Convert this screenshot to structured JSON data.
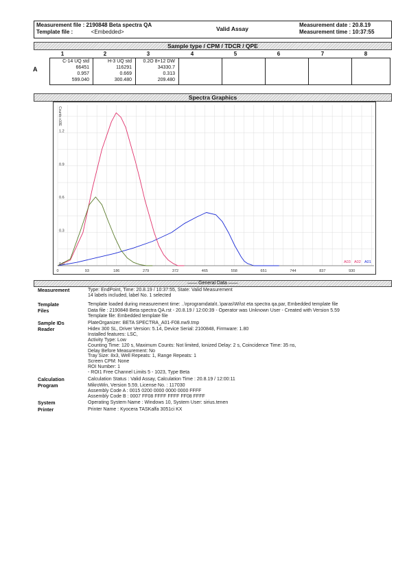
{
  "header": {
    "measurement_file_label": "Measurement file :",
    "measurement_file_value": "2190848 Beta spectra QA",
    "template_file_label": "Template file :",
    "template_file_value": "<Embedded>",
    "status": "Valid Assay",
    "measurement_date_label": "Measurement date :",
    "measurement_date_value": "20.8.19",
    "measurement_time_label": "Measurement time :",
    "measurement_time_value": "10:37:55"
  },
  "sample_section": {
    "title": "Sample type / CPM / TDCR / QPE",
    "columns": [
      "1",
      "2",
      "3",
      "4",
      "5",
      "6",
      "7",
      "8"
    ],
    "row_label": "A",
    "cells": [
      {
        "type": "C-14 UQ std",
        "cpm": "66451",
        "tdcr": "0.957",
        "qpe": "599.040"
      },
      {
        "type": "H-3 UQ std",
        "cpm": "116291",
        "tdcr": "0.669",
        "qpe": "300.480"
      },
      {
        "type": "0.2O 8+12 DW",
        "cpm": "34330.7",
        "tdcr": "0.313",
        "qpe": "209.480"
      }
    ]
  },
  "spectra": {
    "title": "Spectra Graphics",
    "ylabel": "Counts x10E",
    "legend": [
      "A03",
      "A02",
      "A01"
    ]
  },
  "chart_data": {
    "type": "line",
    "title": "Spectra Graphics",
    "ylabel": "Counts x10E",
    "xlabel": "",
    "x_ticks": [
      "0",
      "93",
      "186",
      "279",
      "372",
      "465",
      "558",
      "651",
      "744",
      "837",
      "930"
    ],
    "y_ticks": [
      "0.0",
      "0.3",
      "0.6",
      "0.9",
      "1.2"
    ],
    "xlim": [
      0,
      1000
    ],
    "ylim": [
      0,
      1.45
    ],
    "grid": true,
    "legend_position": "bottom-right",
    "series": [
      {
        "name": "A01",
        "color": "#1a2bd6",
        "x": [
          0,
          60,
          120,
          180,
          240,
          300,
          360,
          400,
          440,
          470,
          500,
          520,
          540,
          560,
          580,
          590,
          600,
          620,
          660,
          700
        ],
        "y": [
          0.0,
          0.03,
          0.07,
          0.11,
          0.16,
          0.22,
          0.3,
          0.38,
          0.44,
          0.48,
          0.46,
          0.4,
          0.3,
          0.18,
          0.08,
          0.04,
          0.02,
          0.0,
          0.0,
          0.0
        ]
      },
      {
        "name": "A02",
        "color": "#e0306a",
        "x": [
          0,
          40,
          80,
          110,
          140,
          170,
          185,
          200,
          215,
          230,
          245,
          260,
          275,
          290,
          305,
          320,
          335,
          350,
          365,
          380,
          400
        ],
        "y": [
          0.0,
          0.05,
          0.3,
          0.7,
          1.05,
          1.3,
          1.38,
          1.34,
          1.25,
          1.1,
          0.95,
          0.78,
          0.6,
          0.45,
          0.3,
          0.18,
          0.1,
          0.05,
          0.02,
          0.0,
          0.0
        ]
      },
      {
        "name": "A03",
        "color": "#5a7a2a",
        "x": [
          0,
          40,
          70,
          100,
          120,
          140,
          160,
          180,
          200,
          220,
          240,
          260,
          280,
          300
        ],
        "y": [
          0.0,
          0.06,
          0.3,
          0.55,
          0.62,
          0.55,
          0.4,
          0.26,
          0.14,
          0.07,
          0.03,
          0.01,
          0.0,
          0.0
        ]
      }
    ]
  },
  "general": {
    "title": "General Data",
    "rows": [
      {
        "label": "Measurement",
        "lines": [
          "Type: EndPoint, Time: 20.8.19 / 10:37:55, State: Valid Measurement",
          "14 labels included, label No. 1 selected"
        ]
      },
      {
        "label": "Template",
        "lines": [
          "Template loaded during measurement time: ..\\rprogramdata\\t..\\paras\\Wi\\st eta spectra qa.par, Embedded template file"
        ]
      },
      {
        "label": "Files",
        "lines": [
          "Data file : 2190848 Beta spectra QA.rst - 20.8.19 / 12:00:39 - Operator was Unknown User - Created with Version 5.59",
          "Template file: Embedded template file"
        ]
      },
      {
        "label": "Sample IDs",
        "lines": [
          "PlateOrganizer: BETA SPECTRA_A01-F08.nw9.tmp"
        ]
      },
      {
        "label": "Reader",
        "lines": [
          "Hidex 300 SL, Driver Version: 5.14, Device Serial: 2100848, Firmware: 1.80",
          "Installed features: LSC,",
          "Activity Type: Low",
          "Counting Time: 120 s, Maximum Counts: Not limited, Ionized Delay: 2 s, Coincidence Time: 35 ns,",
          "Delay Before Measurement: No",
          "Tray Size: 8x3, Well Repeats: 1, Range Repeats: 1",
          "Screen CPM: None",
          "ROI Number: 1",
          "- ROI1 Free Channel Limits 5 - 1023, Type Beta"
        ]
      },
      {
        "label": "Calculation",
        "lines": [
          "Calculation Status : Valid Assay, Calculation Time : 20.8.19 / 12:00:11"
        ]
      },
      {
        "label": "Program",
        "lines": [
          "MikroWin, Version 5.59, License No. : 117030",
          "Assembly Code A : 0015 0200 0000 0000 0000 FFFF",
          "Assembly Code B : 0007 FF08 FFFF FFFF FF08 FFFF"
        ]
      },
      {
        "label": "System",
        "lines": [
          "Operating System Name : Windows 10, System User: sirius.tenen"
        ]
      },
      {
        "label": "Printer",
        "lines": [
          "Printer Name : Kyocera TASKalfa 3051ci KX"
        ]
      }
    ]
  }
}
